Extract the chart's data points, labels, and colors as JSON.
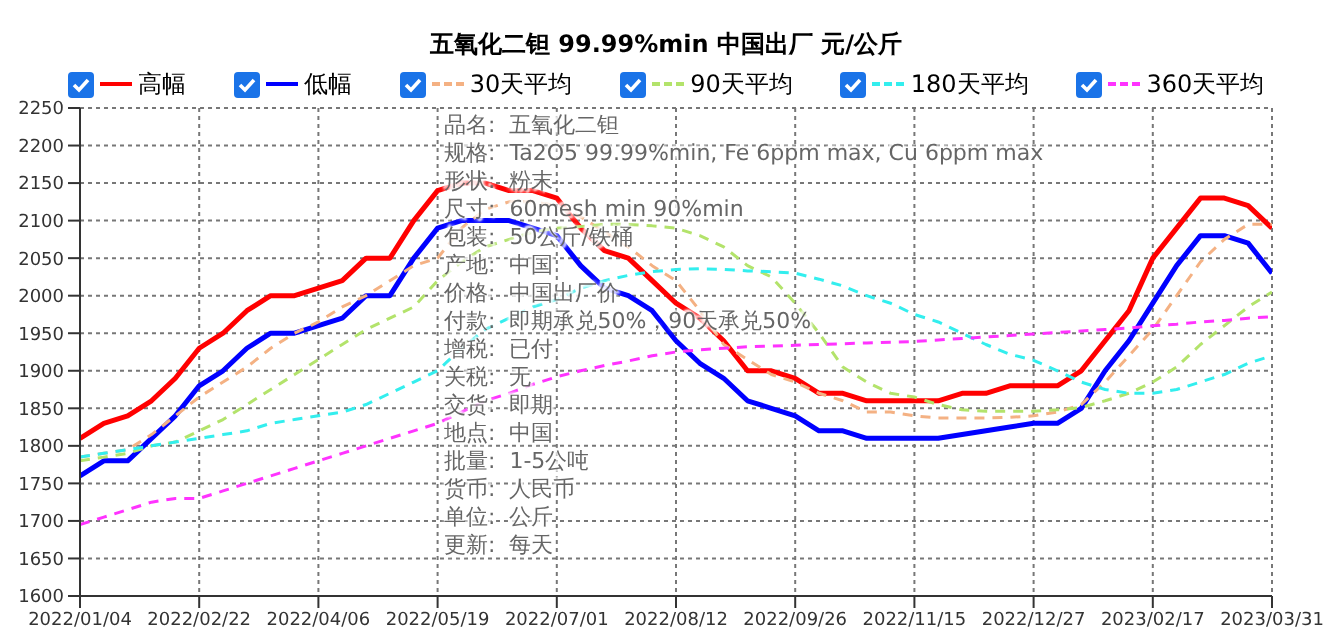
{
  "chart_data": {
    "type": "line",
    "title": "五氧化二钽 99.99%min 中国出厂 元/公斤",
    "categories": [
      "2022/01/04",
      null,
      null,
      null,
      null,
      "2022/02/22",
      null,
      null,
      null,
      null,
      "2022/04/06",
      null,
      null,
      null,
      null,
      "2022/05/19",
      null,
      null,
      null,
      null,
      "2022/07/01",
      null,
      null,
      null,
      null,
      "2022/08/12",
      null,
      null,
      null,
      null,
      "2022/09/26",
      null,
      null,
      null,
      null,
      "2022/11/15",
      null,
      null,
      null,
      null,
      "2022/12/27",
      null,
      null,
      null,
      null,
      "2023/02/17",
      null,
      null,
      null,
      null,
      "2023/03/31"
    ],
    "series": [
      {
        "name": "高幅",
        "color": "#ff0000",
        "line_style": "solid",
        "values": [
          1810,
          1830,
          1840,
          1860,
          1890,
          1930,
          1950,
          1980,
          2000,
          2000,
          2010,
          2020,
          2050,
          2050,
          2100,
          2140,
          2150,
          2150,
          2140,
          2140,
          2130,
          2090,
          2060,
          2050,
          2020,
          1990,
          1970,
          1940,
          1900,
          1900,
          1890,
          1870,
          1870,
          1860,
          1860,
          1860,
          1860,
          1870,
          1870,
          1880,
          1880,
          1880,
          1900,
          1940,
          1980,
          2050,
          2090,
          2130,
          2130,
          2120,
          2090
        ]
      },
      {
        "name": "低幅",
        "color": "#0000ff",
        "line_style": "solid",
        "values": [
          1760,
          1780,
          1780,
          1810,
          1840,
          1880,
          1900,
          1930,
          1950,
          1950,
          1960,
          1970,
          2000,
          2000,
          2050,
          2090,
          2100,
          2100,
          2100,
          2090,
          2080,
          2040,
          2010,
          2000,
          1980,
          1940,
          1910,
          1890,
          1860,
          1850,
          1840,
          1820,
          1820,
          1810,
          1810,
          1810,
          1810,
          1815,
          1820,
          1825,
          1830,
          1830,
          1850,
          1900,
          1940,
          1990,
          2040,
          2080,
          2080,
          2070,
          2030
        ]
      },
      {
        "name": "30天平均",
        "color": "#f4b183",
        "line_style": "dashed",
        "values": [
          1785,
          1790,
          1795,
          1815,
          1840,
          1865,
          1885,
          1905,
          1930,
          1950,
          1965,
          1985,
          2000,
          2020,
          2040,
          2050,
          2090,
          2115,
          2125,
          2125,
          2120,
          2105,
          2085,
          2065,
          2040,
          2020,
          1980,
          1935,
          1915,
          1895,
          1885,
          1870,
          1860,
          1845,
          1845,
          1840,
          1837,
          1837,
          1837,
          1838,
          1840,
          1845,
          1855,
          1885,
          1920,
          1955,
          2000,
          2045,
          2075,
          2095,
          2095
        ]
      },
      {
        "name": "90天平均",
        "color": "#b3e36b",
        "line_style": "dashed",
        "values": [
          1780,
          1785,
          1790,
          1800,
          1805,
          1820,
          1835,
          1855,
          1875,
          1895,
          1915,
          1935,
          1955,
          1970,
          1985,
          2020,
          2045,
          2065,
          2075,
          2085,
          2090,
          2092,
          2095,
          2095,
          2093,
          2090,
          2080,
          2065,
          2040,
          2025,
          1990,
          1950,
          1905,
          1885,
          1870,
          1865,
          1855,
          1848,
          1846,
          1846,
          1846,
          1848,
          1851,
          1860,
          1870,
          1885,
          1905,
          1935,
          1960,
          1985,
          2005
        ]
      },
      {
        "name": "180天平均",
        "color": "#33eeee",
        "line_style": "dashed",
        "values": [
          1785,
          1790,
          1795,
          1800,
          1805,
          1810,
          1815,
          1820,
          1830,
          1835,
          1840,
          1845,
          1855,
          1870,
          1885,
          1900,
          1930,
          1955,
          1970,
          1985,
          1995,
          2010,
          2020,
          2027,
          2032,
          2035,
          2036,
          2035,
          2033,
          2032,
          2030,
          2022,
          2013,
          2000,
          1990,
          1975,
          1965,
          1950,
          1935,
          1922,
          1914,
          1900,
          1885,
          1875,
          1870,
          1870,
          1875,
          1885,
          1895,
          1910,
          1920
        ]
      },
      {
        "name": "360天平均",
        "color": "#ff33ff",
        "line_style": "dashed",
        "values": [
          1695,
          1705,
          1715,
          1725,
          1730,
          1730,
          1740,
          1750,
          1760,
          1770,
          1780,
          1790,
          1800,
          1810,
          1820,
          1830,
          1845,
          1860,
          1870,
          1882,
          1892,
          1900,
          1907,
          1913,
          1920,
          1925,
          1928,
          1930,
          1932,
          1933,
          1934,
          1935,
          1936,
          1937,
          1938,
          1939,
          1941,
          1943,
          1945,
          1947,
          1949,
          1951,
          1953,
          1955,
          1957,
          1960,
          1962,
          1965,
          1967,
          1970,
          1972
        ]
      }
    ],
    "ylim": [
      1600,
      2250
    ],
    "yticks": [
      1600,
      1650,
      1700,
      1750,
      1800,
      1850,
      1900,
      1950,
      2000,
      2050,
      2100,
      2150,
      2200,
      2250
    ],
    "grid": true,
    "legend": "top",
    "marker": "none",
    "annotations": [
      "品名:  五氧化二钽",
      "规格:  Ta2O5 99.99%min, Fe 6ppm max, Cu 6ppm max",
      "形状:  粉末",
      "尺寸:  60mesh min 90%min",
      "包装:  50公斤/铁桶",
      "产地:  中国",
      "价格:  中国出厂价",
      "付款:  即期承兑50%，90天承兑50%",
      "增税:  已付",
      "关税:  无",
      "交货:  即期",
      "地点:  中国",
      "批量:  1-5公吨",
      "货币:  人民币",
      "单位:  公斤",
      "更新:  每天"
    ]
  }
}
